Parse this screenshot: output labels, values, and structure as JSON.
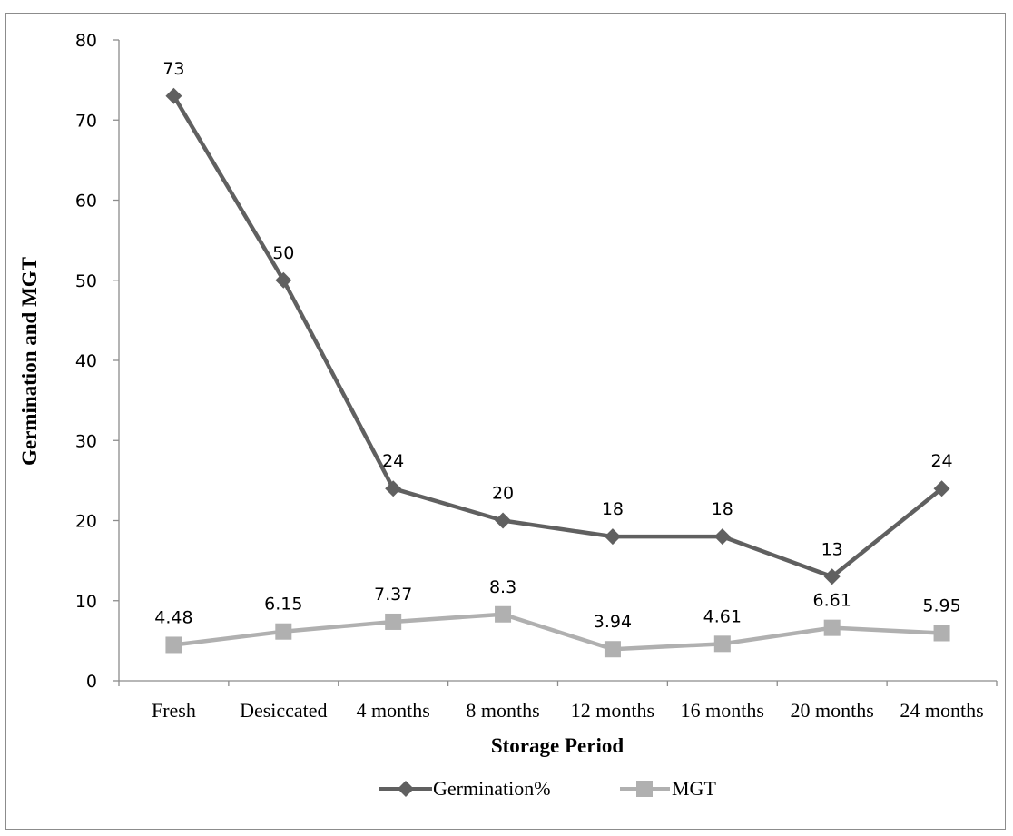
{
  "chart_data": {
    "type": "line",
    "categories": [
      "Fresh",
      "Desiccated",
      "4 months",
      "8 months",
      "12 months",
      "16 months",
      "20 months",
      "24 months"
    ],
    "series": [
      {
        "name": "Germination%",
        "values": [
          73,
          50,
          24,
          20,
          18,
          18,
          13,
          24
        ],
        "labels": [
          "73",
          "50",
          "24",
          "20",
          "18",
          "18",
          "13",
          "24"
        ],
        "color": "#606060",
        "marker": "diamond"
      },
      {
        "name": "MGT",
        "values": [
          4.48,
          6.15,
          7.37,
          8.3,
          3.94,
          4.61,
          6.61,
          5.95
        ],
        "labels": [
          "4.48",
          "6.15",
          "7.37",
          "8.3",
          "3.94",
          "4.61",
          "6.61",
          "5.95"
        ],
        "color": "#b0b0b0",
        "marker": "square"
      }
    ],
    "xlabel": "Storage Period",
    "ylabel": "Germination and MGT",
    "ylim": [
      0,
      80
    ],
    "yticks": [
      "0",
      "10",
      "20",
      "30",
      "40",
      "50",
      "60",
      "70",
      "80"
    ],
    "grid": false,
    "legend_position": "bottom"
  }
}
